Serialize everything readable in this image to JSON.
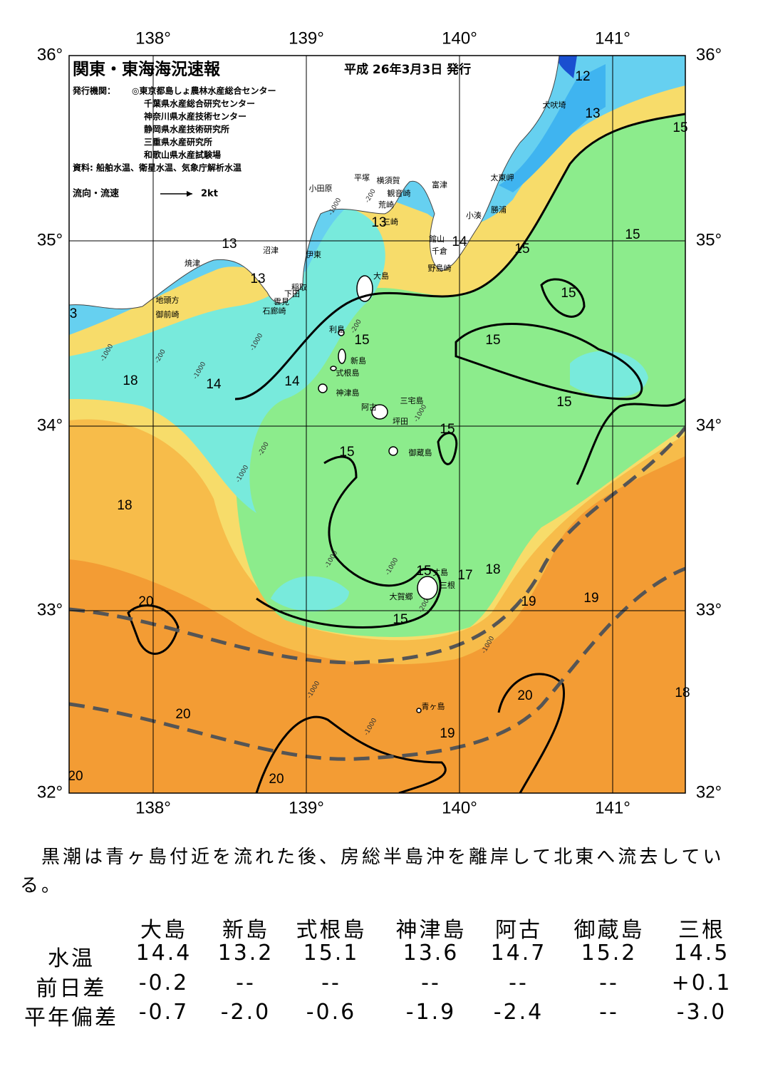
{
  "header": {
    "title": "関東・東海海況速報",
    "date": "平成 26年3月3日 発行"
  },
  "info": {
    "publisher_label": "発行機関：",
    "publishers": [
      "◎東京都島しょ農林水産総合センター",
      "千葉県水産総合研究センター",
      "神奈川県水産技術センター",
      "静岡県水産技術研究所",
      "三重県水産研究所",
      "和歌山県水産試験場"
    ],
    "sources": "資料: 船舶水温、衛星水温、気象庁解析水温",
    "legend": "流向・流速",
    "legend_scale": "2kt"
  },
  "map": {
    "lon_labels": [
      "138°",
      "139°",
      "140°",
      "141°"
    ],
    "lat_labels": [
      "36°",
      "35°",
      "34°",
      "33°",
      "32°"
    ],
    "places": [
      "犬吠埼",
      "太東岬",
      "勝浦",
      "小湊",
      "富津",
      "観音崎",
      "横須賀",
      "平塚",
      "小田原",
      "荒崎",
      "三崎",
      "館山",
      "千倉",
      "野島崎",
      "沼津",
      "伊東",
      "焼津",
      "稲取",
      "下田",
      "雲見",
      "石廊崎",
      "地頭方",
      "御前崎",
      "大島",
      "利島",
      "新島",
      "式根島",
      "神津島",
      "阿古",
      "三宅島",
      "坪田",
      "御蔵島",
      "丈島",
      "三根",
      "大賀郷",
      "青ヶ島"
    ],
    "contour_labels": [
      "12",
      "13",
      "15",
      "15",
      "14",
      "13",
      "13",
      "13",
      "15",
      "15",
      "15",
      "14",
      "14",
      "18",
      "15",
      "15",
      "15",
      "18",
      "15",
      "17",
      "18",
      "19",
      "19",
      "20",
      "15",
      "20",
      "20",
      "19",
      "20",
      "3",
      "18",
      "20",
      "15"
    ],
    "depth_labels": [
      "-1000",
      "-200",
      "-1000",
      "-1000",
      "-200",
      "-1000",
      "-200",
      "-1000",
      "-1000",
      "-1000",
      "-200",
      "-1000",
      "-1000",
      "-1000",
      "-200",
      "-1000"
    ]
  },
  "summary": "黒潮は青ヶ島付近を流れた後、房総半島沖を離岸して北東へ流去している。",
  "table": {
    "stations": [
      "大島",
      "新島",
      "式根島",
      "神津島",
      "阿古",
      "御蔵島",
      "三根"
    ],
    "rows": [
      {
        "label": "水温",
        "values": [
          "14.4",
          "13.2",
          "15.1",
          "13.6",
          "14.7",
          "15.2",
          "14.5"
        ]
      },
      {
        "label": "前日差",
        "values": [
          "-0.2",
          "--",
          "--",
          "--",
          "--",
          "--",
          "+0.1"
        ]
      },
      {
        "label": "平年偏差",
        "values": [
          "-0.7",
          "-2.0",
          "-0.6",
          "-1.9",
          "-2.4",
          "--",
          "-3.0"
        ]
      }
    ]
  }
}
